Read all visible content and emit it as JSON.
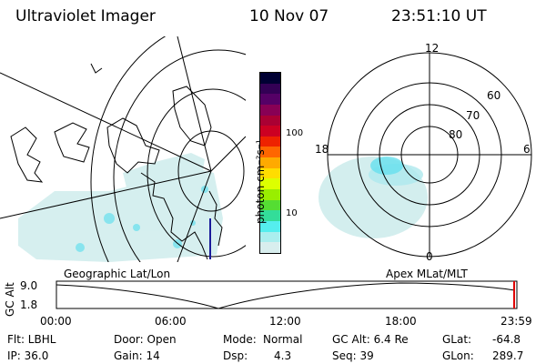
{
  "header": {
    "instrument": "Ultraviolet Imager",
    "date": "10 Nov 07",
    "time": "23:51:10 UT"
  },
  "geo_map": {
    "label": "Geographic Lat/Lon"
  },
  "colorbar": {
    "unit_label": "photon cm⁻²s⁻¹",
    "ticks": [
      "100",
      "10"
    ],
    "colors": [
      "#000033",
      "#330055",
      "#550066",
      "#880055",
      "#aa0033",
      "#cc0022",
      "#ee2200",
      "#ff6600",
      "#ffaa00",
      "#ffdd00",
      "#ddff00",
      "#99ee00",
      "#55dd33",
      "#33dd99",
      "#55eeee",
      "#aaeeee",
      "#d8eeee"
    ]
  },
  "polar_plot": {
    "label": "Apex MLat/MLT",
    "mlt_labels": {
      "top": "12",
      "bottom": "0",
      "left": "18",
      "right": "6"
    },
    "lat_labels": [
      "60",
      "70",
      "80"
    ]
  },
  "timeline": {
    "axis_label": "GC Alt",
    "y_ticks": [
      "9.0",
      "1.8"
    ],
    "x_ticks": [
      "00:00",
      "06:00",
      "12:00",
      "18:00",
      "23:59"
    ]
  },
  "info": {
    "row1": {
      "filter": "Flt: LBHL",
      "door": "Door: Open",
      "mode_label": "Mode:",
      "mode": "Normal",
      "gc_alt": "GC Alt: 6.4 Re",
      "glat_label": "GLat:",
      "glat": "-64.8"
    },
    "row2": {
      "ip": "IP: 36.0",
      "gain": "Gain: 14",
      "dsp_label": "Dsp:",
      "dsp": "4.3",
      "seq": "Seq: 39",
      "glon_label": "GLon:",
      "glon": "289.7"
    }
  }
}
